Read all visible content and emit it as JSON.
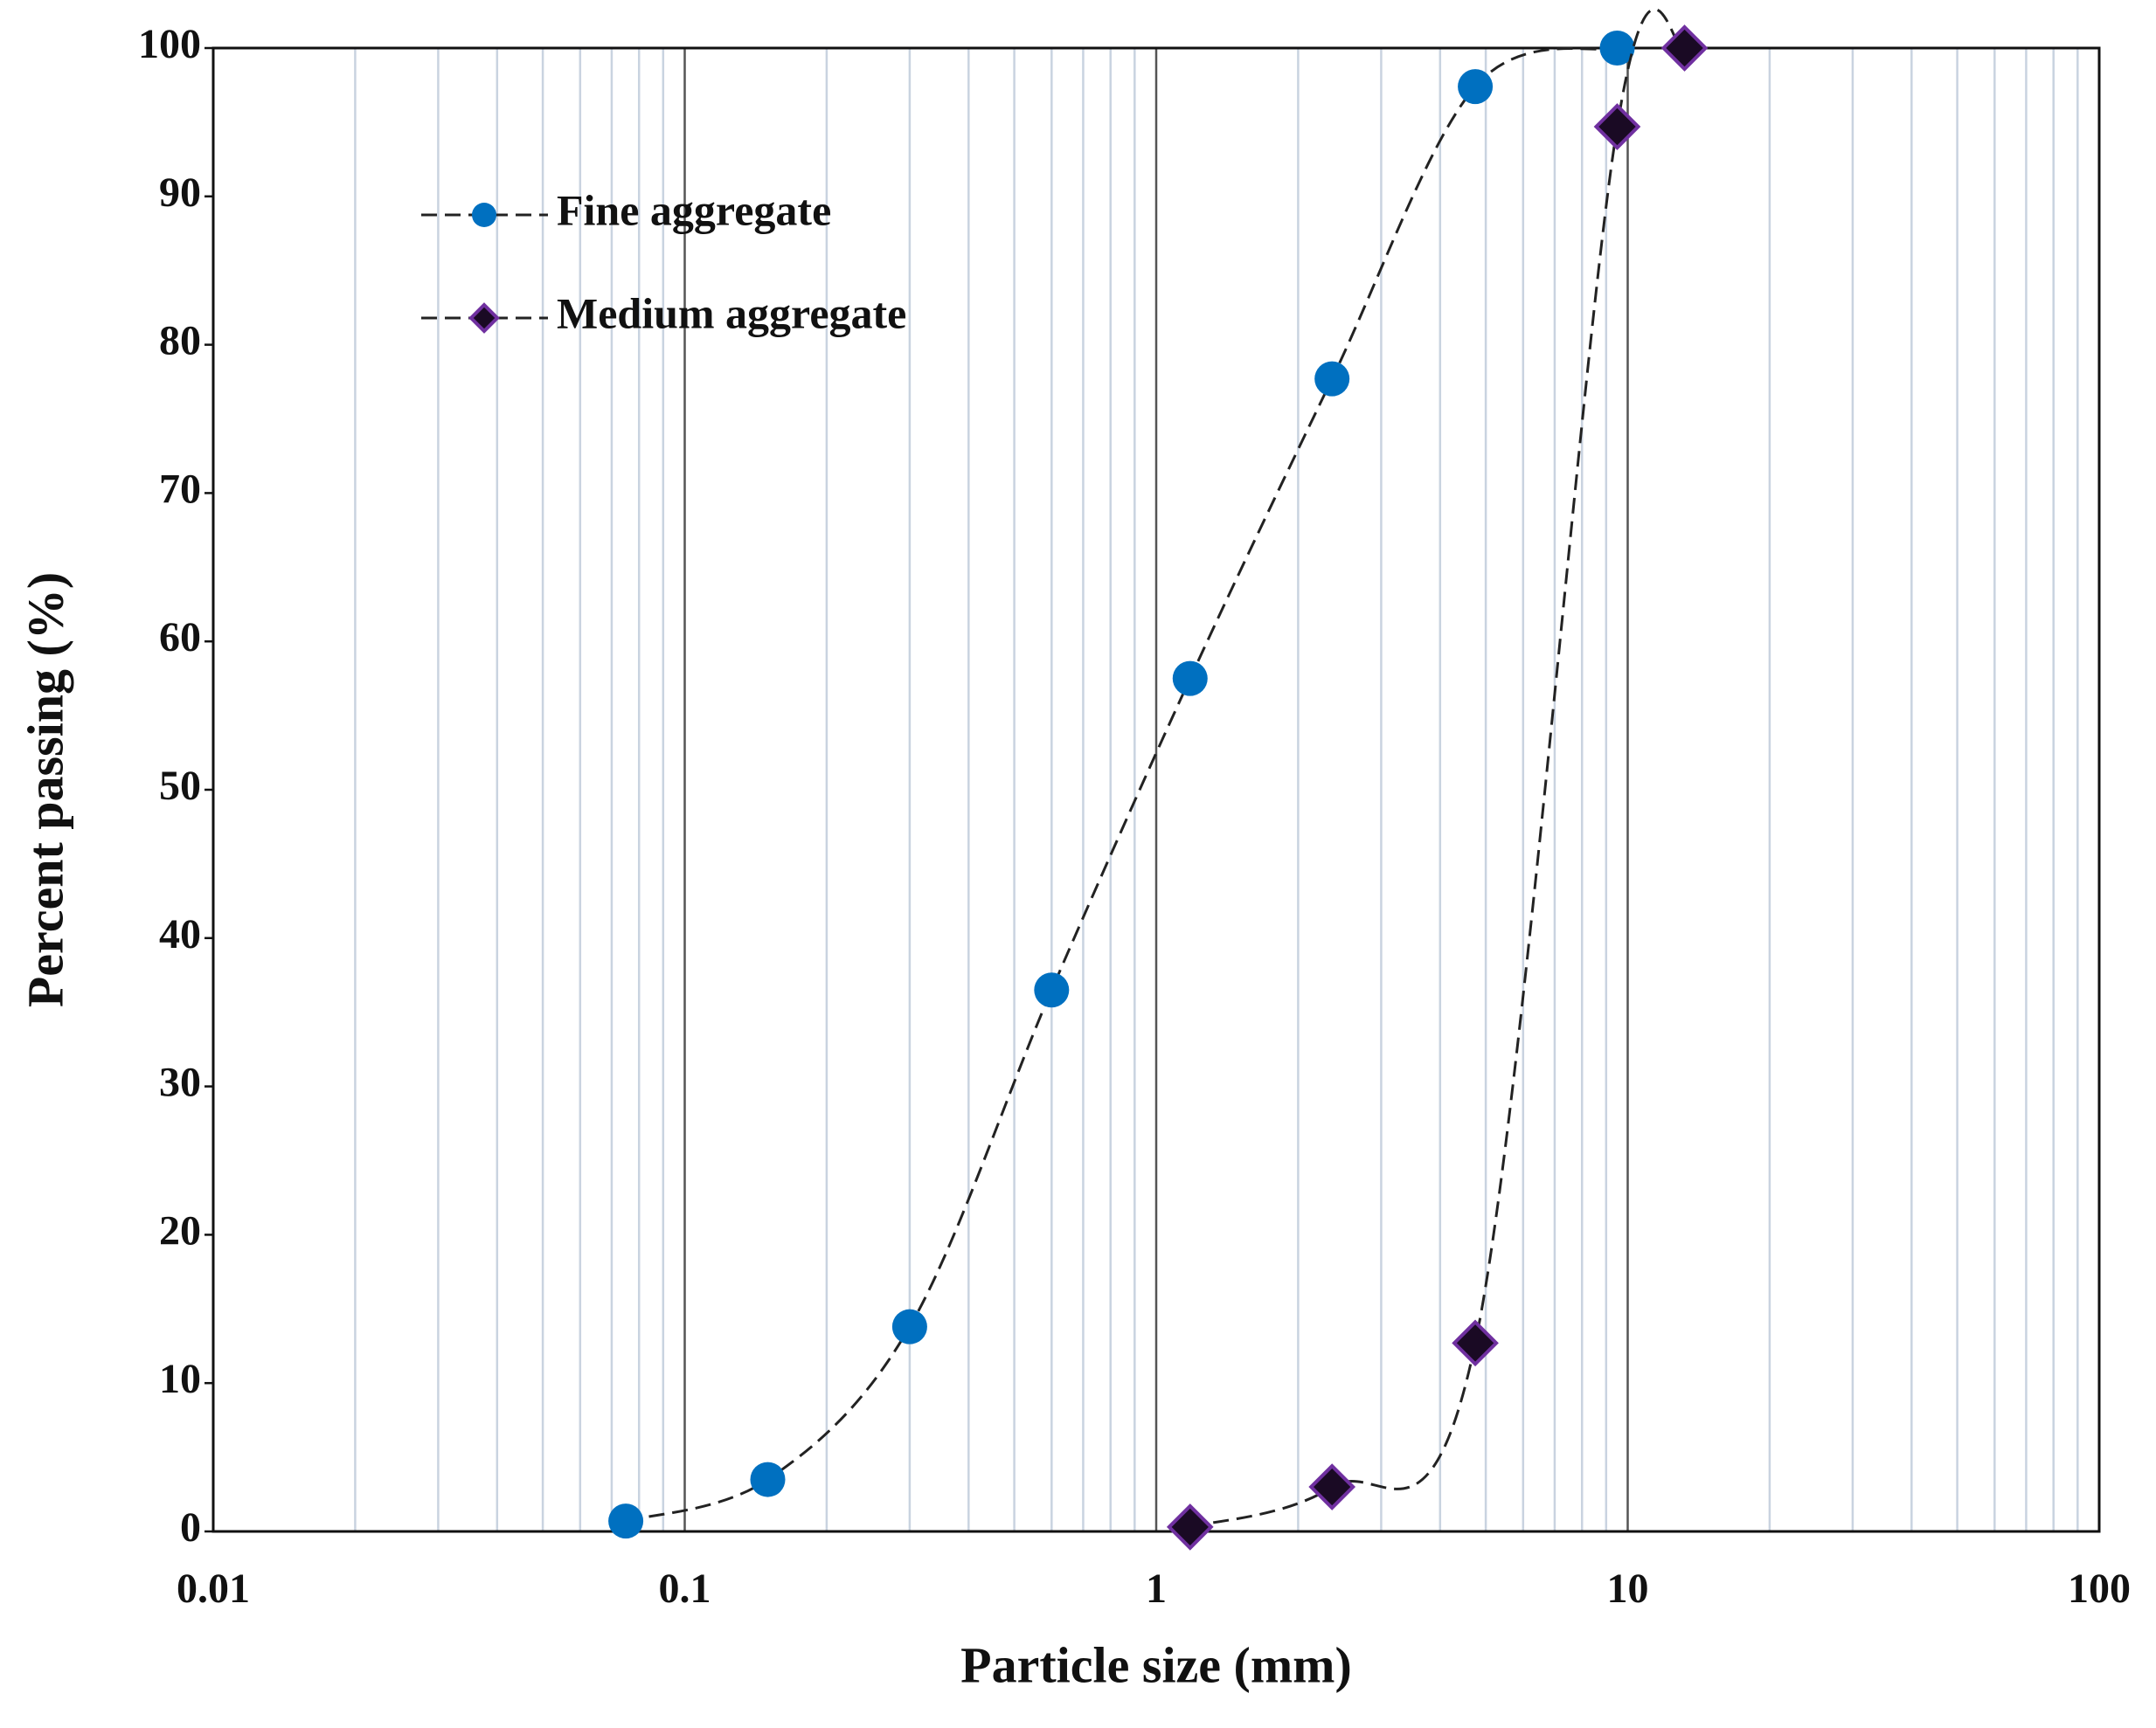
{
  "chart_data": {
    "type": "scatter",
    "x_label": "Particle size (mm)",
    "y_label": "Percent passing (%)",
    "xscale": "log",
    "xlim": [
      0.01,
      100
    ],
    "xticks": [
      0.01,
      0.1,
      1,
      10,
      100
    ],
    "ylim": [
      0,
      100
    ],
    "yticks": [
      0,
      10,
      20,
      30,
      40,
      50,
      60,
      70,
      80,
      90,
      100
    ],
    "grid": true,
    "minor_grid": true,
    "legend": "upper left",
    "line_color": "#222222",
    "line_style": "dashed",
    "series": [
      {
        "name": "Fine aggregate",
        "color": "#0070c0",
        "marker": "circle",
        "x": [
          0.075,
          0.15,
          0.3,
          0.6,
          1.18,
          2.36,
          4.75,
          9.5
        ],
        "values": [
          0.7,
          3.5,
          13.8,
          36.5,
          57.5,
          77.7,
          97.4,
          100
        ]
      },
      {
        "name": "Medium aggregate",
        "color": "#1a0a24",
        "edge_color": "#7030a0",
        "marker": "diamond",
        "x": [
          1.18,
          2.36,
          4.75,
          9.5,
          13.2
        ],
        "values": [
          0.3,
          3,
          12.7,
          94.7,
          100
        ]
      }
    ]
  }
}
